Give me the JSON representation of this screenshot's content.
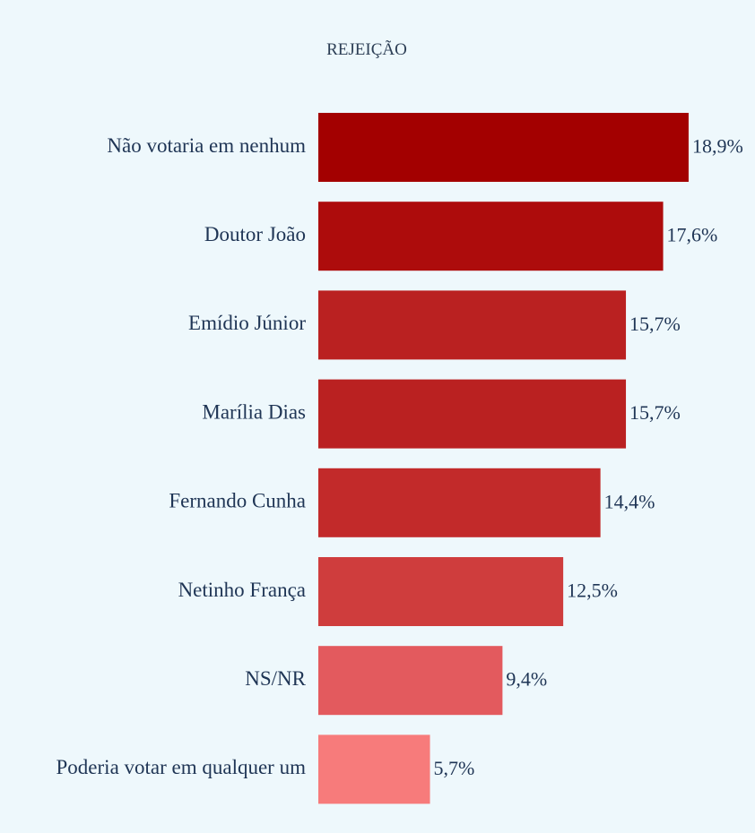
{
  "chart_data": {
    "type": "bar",
    "orientation": "horizontal",
    "title": "REJEIÇÃO",
    "categories": [
      "Não votaria em nenhum",
      "Doutor João",
      "Emídio Júnior",
      "Marília Dias",
      "Fernando Cunha",
      "Netinho França",
      "NS/NR",
      "Poderia votar em qualquer um"
    ],
    "values": [
      18.9,
      17.6,
      15.7,
      15.7,
      14.4,
      12.5,
      9.4,
      5.7
    ],
    "value_labels": [
      "18,9%",
      "17,6%",
      "15,7%",
      "15,7%",
      "14,4%",
      "12,5%",
      "9,4%",
      "5,7%"
    ],
    "colors": [
      "#a30000",
      "#ad0c0c",
      "#ba2121",
      "#ba2121",
      "#c22a2a",
      "#cf3d3d",
      "#e35a5e",
      "#f77b7b"
    ],
    "grid": false,
    "legend": "none"
  }
}
